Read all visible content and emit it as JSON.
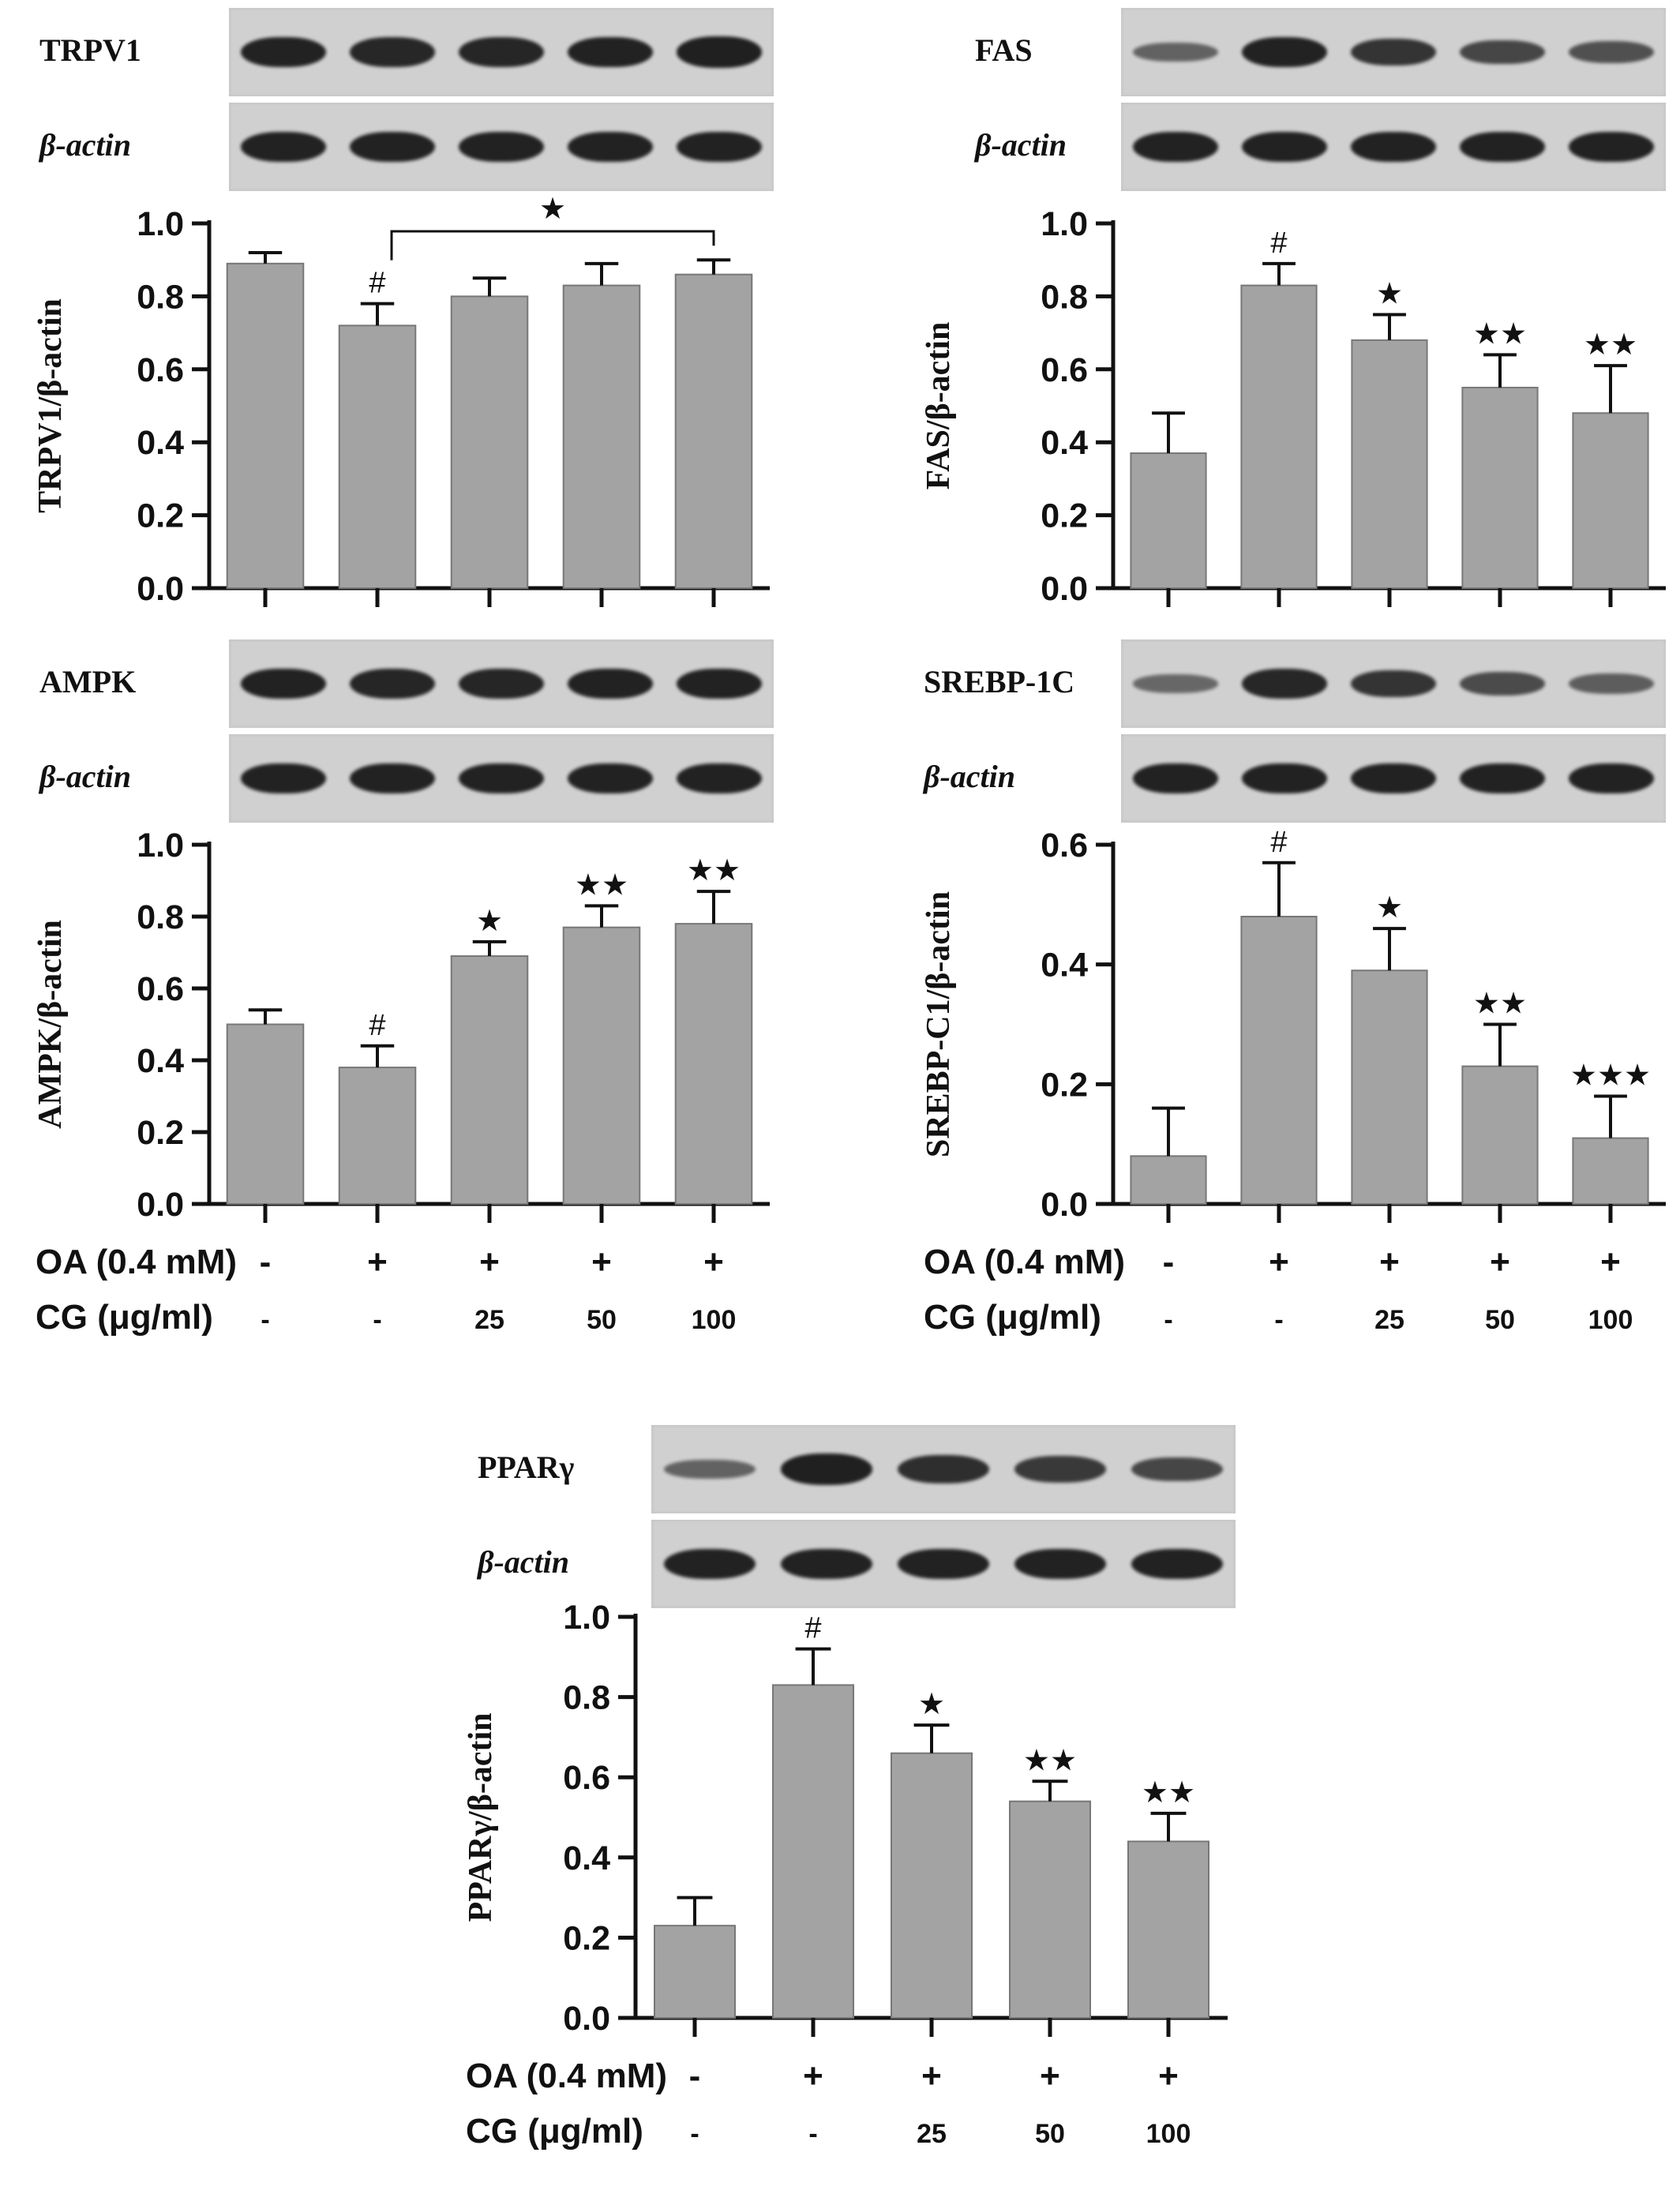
{
  "condition_labels": {
    "oa": "OA (0.4 mM)",
    "cg": "CG  (μg/ml)"
  },
  "colors": {
    "bar": "#a3a3a3",
    "band": "#1d1d1d",
    "blot_bg": "#d0d0d0"
  },
  "chart_data": [
    {
      "type": "bar",
      "blots": [
        "TRPV1",
        "β-actin"
      ],
      "ylabel": "TRPV1/β-actin",
      "ylim": [
        0,
        1.0
      ],
      "yticks": [
        "0.0",
        "0.2",
        "0.4",
        "0.6",
        "0.8",
        "1.0"
      ],
      "values": [
        0.89,
        0.72,
        0.8,
        0.83,
        0.86
      ],
      "errors": [
        0.03,
        0.06,
        0.05,
        0.06,
        0.04
      ],
      "annotations": [
        "",
        "#",
        "",
        "",
        ""
      ],
      "bracket": {
        "from": 1,
        "to": 4,
        "label": "★"
      },
      "band_intensity": [
        [
          0.95,
          0.9,
          0.92,
          0.95,
          0.97
        ],
        [
          0.95,
          0.95,
          0.95,
          0.95,
          0.95
        ]
      ],
      "show_conditions": false
    },
    {
      "type": "bar",
      "blots": [
        "FAS",
        "β-actin"
      ],
      "ylabel": "FAS/β-actin",
      "ylim": [
        0,
        1.0
      ],
      "yticks": [
        "0.0",
        "0.2",
        "0.4",
        "0.6",
        "0.8",
        "1.0"
      ],
      "values": [
        0.37,
        0.83,
        0.68,
        0.55,
        0.48
      ],
      "errors": [
        0.11,
        0.06,
        0.07,
        0.09,
        0.13
      ],
      "annotations": [
        "",
        "#",
        "★",
        "★★",
        "★★"
      ],
      "band_intensity": [
        [
          0.4,
          0.95,
          0.8,
          0.65,
          0.55
        ],
        [
          0.95,
          0.95,
          0.95,
          0.95,
          0.95
        ]
      ],
      "show_conditions": false
    },
    {
      "type": "bar",
      "blots": [
        "AMPK",
        "β-actin"
      ],
      "ylabel": "AMPK/β-actin",
      "ylim": [
        0,
        1.0
      ],
      "yticks": [
        "0.0",
        "0.2",
        "0.4",
        "0.6",
        "0.8",
        "1.0"
      ],
      "values": [
        0.5,
        0.38,
        0.69,
        0.77,
        0.78
      ],
      "errors": [
        0.04,
        0.06,
        0.04,
        0.06,
        0.09
      ],
      "annotations": [
        "",
        "#",
        "★",
        "★★",
        "★★"
      ],
      "band_intensity": [
        [
          0.95,
          0.92,
          0.93,
          0.95,
          0.96
        ],
        [
          0.95,
          0.95,
          0.95,
          0.95,
          0.95
        ]
      ],
      "show_conditions": true,
      "oa": [
        "-",
        "+",
        "+",
        "+",
        "+"
      ],
      "cg": [
        "-",
        "-",
        "25",
        "50",
        "100"
      ]
    },
    {
      "type": "bar",
      "blots": [
        "SREBP-1C",
        "β-actin"
      ],
      "ylabel": "SREBP-C1/β-actin",
      "ylim": [
        0,
        0.6
      ],
      "yticks": [
        "0.0",
        "0.2",
        "0.4",
        "0.6"
      ],
      "values": [
        0.08,
        0.48,
        0.39,
        0.23,
        0.11
      ],
      "errors": [
        0.08,
        0.09,
        0.07,
        0.07,
        0.07
      ],
      "annotations": [
        "",
        "#",
        "★",
        "★★",
        "★★★"
      ],
      "band_intensity": [
        [
          0.35,
          0.9,
          0.8,
          0.6,
          0.45
        ],
        [
          0.95,
          0.95,
          0.95,
          0.95,
          0.95
        ]
      ],
      "show_conditions": true,
      "oa": [
        "-",
        "+",
        "+",
        "+",
        "+"
      ],
      "cg": [
        "-",
        "-",
        "25",
        "50",
        "100"
      ]
    },
    {
      "type": "bar",
      "blots": [
        "PPARγ",
        "β-actin"
      ],
      "ylabel": "PPARγ/β-actin",
      "ylim": [
        0,
        1.0
      ],
      "yticks": [
        "0.0",
        "0.2",
        "0.4",
        "0.6",
        "0.8",
        "1.0"
      ],
      "values": [
        0.23,
        0.83,
        0.66,
        0.54,
        0.44
      ],
      "errors": [
        0.07,
        0.09,
        0.07,
        0.05,
        0.07
      ],
      "annotations": [
        "",
        "#",
        "★",
        "★★",
        "★★"
      ],
      "band_intensity": [
        [
          0.4,
          0.97,
          0.85,
          0.75,
          0.65
        ],
        [
          0.95,
          0.95,
          0.95,
          0.95,
          0.95
        ]
      ],
      "show_conditions": true,
      "oa": [
        "-",
        "+",
        "+",
        "+",
        "+"
      ],
      "cg": [
        "-",
        "-",
        "25",
        "50",
        "100"
      ]
    }
  ]
}
